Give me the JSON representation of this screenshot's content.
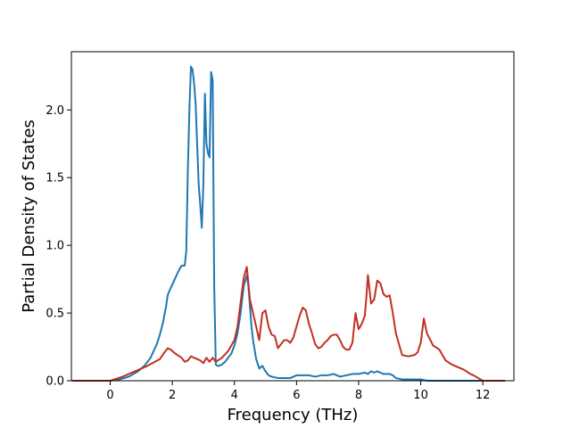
{
  "chart_data": {
    "type": "line",
    "title": "",
    "xlabel": "Frequency (THz)",
    "ylabel": "Partial Density of States",
    "xlim": [
      -1.25,
      13.0
    ],
    "ylim": [
      0.0,
      2.43
    ],
    "xticks": [
      0,
      2,
      4,
      6,
      8,
      10,
      12
    ],
    "xtick_labels": [
      "0",
      "2",
      "4",
      "6",
      "8",
      "10",
      "12"
    ],
    "yticks": [
      0.0,
      0.5,
      1.0,
      1.5,
      2.0
    ],
    "ytick_labels": [
      "0.0",
      "0.5",
      "1.0",
      "1.5",
      "2.0"
    ],
    "grid": false,
    "series": [
      {
        "color": "#1f77b4",
        "x": [
          -1.2,
          0.0,
          0.3,
          0.6,
          0.9,
          1.1,
          1.3,
          1.5,
          1.6,
          1.7,
          1.8,
          1.85,
          1.9,
          2.0,
          2.1,
          2.2,
          2.3,
          2.4,
          2.45,
          2.5,
          2.55,
          2.6,
          2.65,
          2.7,
          2.75,
          2.8,
          2.85,
          2.9,
          2.95,
          3.0,
          3.05,
          3.1,
          3.15,
          3.2,
          3.25,
          3.3,
          3.35,
          3.4,
          3.45,
          3.5,
          3.6,
          3.7,
          3.8,
          3.9,
          4.0,
          4.1,
          4.2,
          4.3,
          4.4,
          4.45,
          4.5,
          4.55,
          4.6,
          4.7,
          4.8,
          4.9,
          5.0,
          5.1,
          5.2,
          5.4,
          5.6,
          5.8,
          6.0,
          6.2,
          6.4,
          6.6,
          6.8,
          7.0,
          7.2,
          7.4,
          7.6,
          7.8,
          8.0,
          8.2,
          8.3,
          8.4,
          8.5,
          8.6,
          8.8,
          9.0,
          9.1,
          9.2,
          9.4,
          9.6,
          9.8,
          10.0,
          10.2,
          10.4,
          10.6,
          11.0,
          11.5,
          12.0,
          12.7
        ],
        "y": [
          0.0,
          0.0,
          0.01,
          0.03,
          0.07,
          0.11,
          0.17,
          0.27,
          0.34,
          0.43,
          0.55,
          0.63,
          0.66,
          0.71,
          0.76,
          0.81,
          0.85,
          0.85,
          0.96,
          1.55,
          2.0,
          2.32,
          2.3,
          2.2,
          2.05,
          1.75,
          1.45,
          1.3,
          1.13,
          1.45,
          2.12,
          1.75,
          1.68,
          1.65,
          2.28,
          2.22,
          0.7,
          0.12,
          0.11,
          0.11,
          0.12,
          0.14,
          0.17,
          0.2,
          0.26,
          0.35,
          0.5,
          0.7,
          0.78,
          0.7,
          0.55,
          0.4,
          0.3,
          0.16,
          0.09,
          0.11,
          0.07,
          0.04,
          0.03,
          0.02,
          0.02,
          0.02,
          0.04,
          0.04,
          0.04,
          0.03,
          0.04,
          0.04,
          0.05,
          0.03,
          0.04,
          0.05,
          0.05,
          0.06,
          0.05,
          0.07,
          0.06,
          0.07,
          0.05,
          0.05,
          0.04,
          0.02,
          0.01,
          0.01,
          0.01,
          0.01,
          0.0,
          0.0,
          0.0,
          0.0,
          0.0,
          0.0,
          0.0
        ]
      },
      {
        "color": "#c0301f",
        "x": [
          -1.2,
          0.0,
          0.4,
          0.8,
          1.2,
          1.6,
          1.75,
          1.85,
          1.95,
          2.1,
          2.3,
          2.4,
          2.5,
          2.6,
          2.7,
          2.9,
          3.0,
          3.1,
          3.2,
          3.3,
          3.4,
          3.6,
          3.8,
          4.0,
          4.1,
          4.2,
          4.3,
          4.4,
          4.45,
          4.5,
          4.55,
          4.6,
          4.7,
          4.8,
          4.9,
          5.0,
          5.1,
          5.2,
          5.3,
          5.4,
          5.5,
          5.6,
          5.7,
          5.8,
          5.9,
          6.0,
          6.1,
          6.2,
          6.3,
          6.4,
          6.5,
          6.6,
          6.7,
          6.8,
          6.9,
          7.0,
          7.1,
          7.2,
          7.3,
          7.4,
          7.5,
          7.6,
          7.7,
          7.8,
          7.9,
          8.0,
          8.1,
          8.2,
          8.25,
          8.3,
          8.4,
          8.5,
          8.6,
          8.7,
          8.8,
          8.9,
          9.0,
          9.1,
          9.2,
          9.4,
          9.6,
          9.8,
          9.9,
          10.0,
          10.1,
          10.2,
          10.4,
          10.6,
          10.8,
          11.0,
          11.2,
          11.4,
          11.6,
          11.7,
          12.0,
          12.7
        ],
        "y": [
          0.0,
          0.0,
          0.03,
          0.07,
          0.11,
          0.16,
          0.21,
          0.24,
          0.23,
          0.2,
          0.17,
          0.14,
          0.15,
          0.18,
          0.17,
          0.15,
          0.13,
          0.17,
          0.14,
          0.17,
          0.14,
          0.17,
          0.22,
          0.3,
          0.4,
          0.58,
          0.76,
          0.84,
          0.72,
          0.6,
          0.55,
          0.5,
          0.4,
          0.3,
          0.5,
          0.52,
          0.4,
          0.34,
          0.33,
          0.24,
          0.27,
          0.3,
          0.3,
          0.28,
          0.32,
          0.4,
          0.48,
          0.54,
          0.52,
          0.42,
          0.35,
          0.27,
          0.24,
          0.25,
          0.28,
          0.3,
          0.33,
          0.34,
          0.34,
          0.3,
          0.25,
          0.23,
          0.23,
          0.28,
          0.5,
          0.38,
          0.42,
          0.48,
          0.62,
          0.78,
          0.57,
          0.6,
          0.74,
          0.72,
          0.64,
          0.62,
          0.63,
          0.5,
          0.35,
          0.19,
          0.18,
          0.19,
          0.21,
          0.28,
          0.46,
          0.35,
          0.26,
          0.23,
          0.15,
          0.12,
          0.1,
          0.08,
          0.05,
          0.04,
          0.0,
          0.0
        ]
      }
    ]
  }
}
